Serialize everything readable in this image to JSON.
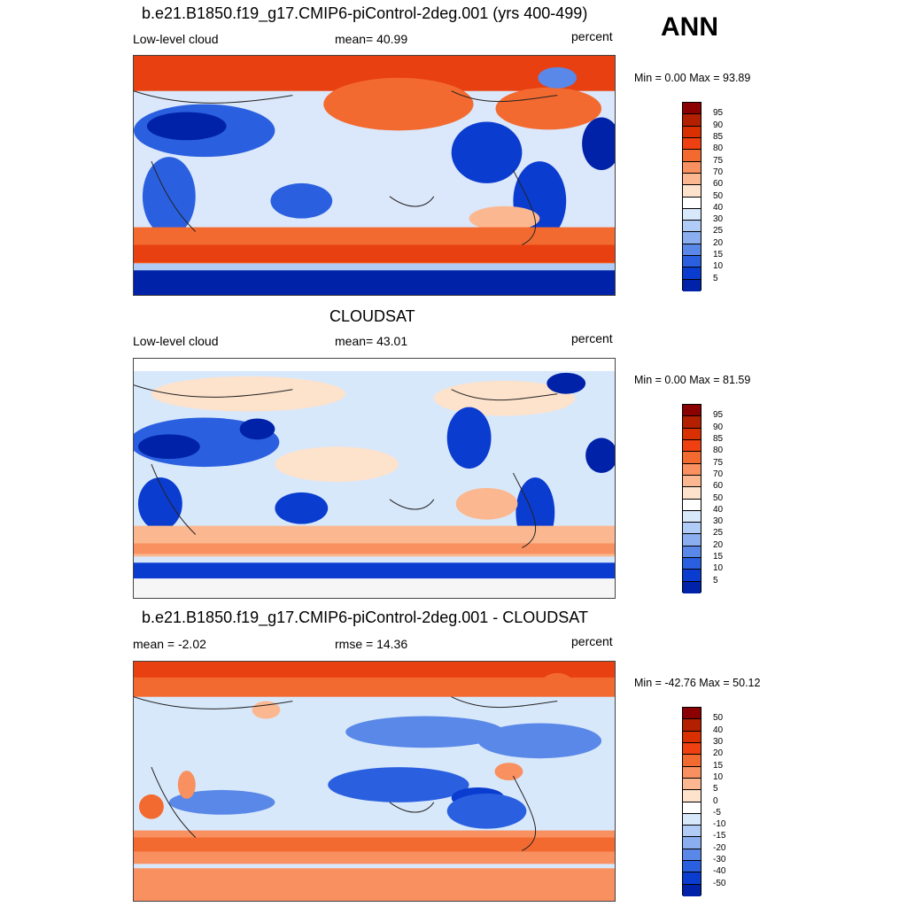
{
  "season": "ANN",
  "panels": [
    {
      "title": "b.e21.B1850.f19_g17.CMIP6-piControl-2deg.001 (yrs 400-499)",
      "left_label": "Low-level cloud",
      "center_label": "mean=  40.99",
      "right_label": "percent",
      "minmax": "Min =   0.00 Max =  93.89",
      "colorbar": {
        "labels": [
          "95",
          "90",
          "85",
          "80",
          "75",
          "70",
          "60",
          "50",
          "40",
          "30",
          "25",
          "20",
          "15",
          "10",
          "5"
        ],
        "colors": [
          "#8b0000",
          "#b22000",
          "#d83000",
          "#ee4010",
          "#f36a30",
          "#f89060",
          "#fbb890",
          "#fde2cc",
          "#ffffff",
          "#d8e8fb",
          "#b0cbf5",
          "#8aaef0",
          "#5a88e8",
          "#2a60e0",
          "#0a3cd0",
          "#0022a8"
        ]
      }
    },
    {
      "title": "CLOUDSAT",
      "left_label": "Low-level cloud",
      "center_label": "mean=  43.01",
      "right_label": "percent",
      "minmax": "Min =   0.00 Max =  81.59",
      "colorbar": {
        "labels": [
          "95",
          "90",
          "85",
          "80",
          "75",
          "70",
          "60",
          "50",
          "40",
          "30",
          "25",
          "20",
          "15",
          "10",
          "5"
        ],
        "colors": [
          "#8b0000",
          "#b22000",
          "#d83000",
          "#ee4010",
          "#f36a30",
          "#f89060",
          "#fbb890",
          "#fde2cc",
          "#ffffff",
          "#d8e8fb",
          "#b0cbf5",
          "#8aaef0",
          "#5a88e8",
          "#2a60e0",
          "#0a3cd0",
          "#0022a8"
        ]
      }
    },
    {
      "title": "b.e21.B1850.f19_g17.CMIP6-piControl-2deg.001 - CLOUDSAT",
      "left_label": "mean =  -2.02",
      "center_label": "rmse =  14.36",
      "right_label": "percent",
      "minmax": "Min = -42.76 Max =  50.12",
      "colorbar": {
        "labels": [
          "50",
          "40",
          "30",
          "20",
          "15",
          "10",
          "5",
          "0",
          "-5",
          "-10",
          "-15",
          "-20",
          "-30",
          "-40",
          "-50"
        ],
        "colors": [
          "#8b0000",
          "#b22000",
          "#d83000",
          "#ee4010",
          "#f36a30",
          "#f89060",
          "#fbb890",
          "#fde2cc",
          "#ffffff",
          "#d8e8fb",
          "#b0cbf5",
          "#8aaef0",
          "#5a88e8",
          "#2a60e0",
          "#0a3cd0",
          "#0022a8"
        ]
      }
    }
  ]
}
